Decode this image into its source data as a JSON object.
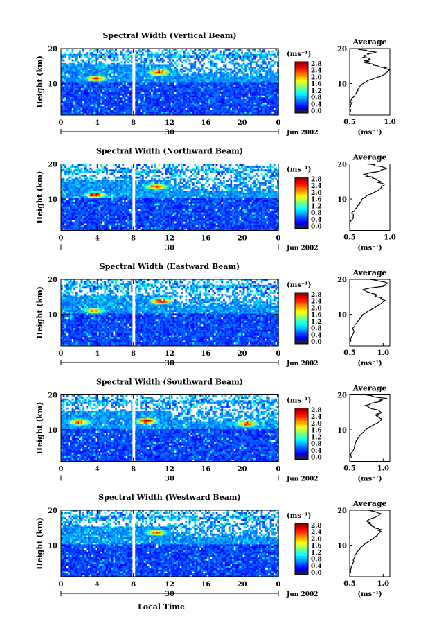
{
  "figure": {
    "xlabel": "Local Time",
    "ylabel": "Height (km)",
    "date_label": "Jun 2002",
    "day_label": "30",
    "unit_label": "(ms⁻¹)",
    "avg_title": "Average",
    "avg_xlabel": "(ms⁻¹)"
  },
  "chart_data": [
    {
      "type": "heatmap",
      "title": "Spectral Width (Vertical Beam)",
      "x_ticks": [
        "0",
        "4",
        "8",
        "12",
        "16",
        "20",
        "0"
      ],
      "xlim": [
        0,
        24
      ],
      "y_ticks": [
        "10",
        "20"
      ],
      "ylim": [
        1,
        20
      ],
      "colorbar": {
        "label": "(ms⁻¹)",
        "ticks": [
          "2.8",
          "2.4",
          "2.0",
          "1.6",
          "1.2",
          "0.8",
          "0.4",
          "0.0"
        ],
        "range": [
          0,
          3.0
        ]
      },
      "gap_hours": [
        7.9,
        8.2
      ],
      "hotspots": [
        {
          "t": 3.9,
          "h": 11.5,
          "v": 2.4
        },
        {
          "t": 10.8,
          "h": 13.2,
          "v": 2.7
        }
      ],
      "average_profile": {
        "xlim": [
          0.5,
          1.0
        ],
        "x_ticks": [
          "0.5",
          "1.0"
        ],
        "y_ticks": [
          "10",
          "20"
        ],
        "height": [
          2,
          3,
          4,
          5,
          6,
          7,
          8,
          9,
          10,
          11,
          12,
          13,
          14,
          15,
          16,
          17,
          18,
          19,
          20
        ],
        "value": [
          0.52,
          0.5,
          0.52,
          0.51,
          0.54,
          0.57,
          0.6,
          0.62,
          0.66,
          0.74,
          0.88,
          0.96,
          0.99,
          0.86,
          0.71,
          0.73,
          0.67,
          0.8,
          0.6
        ]
      }
    },
    {
      "type": "heatmap",
      "title": "Spectral Width (Northward Beam)",
      "x_ticks": [
        "0",
        "4",
        "8",
        "12",
        "16",
        "20",
        "0"
      ],
      "xlim": [
        0,
        24
      ],
      "y_ticks": [
        "10",
        "20"
      ],
      "ylim": [
        1,
        20
      ],
      "colorbar": {
        "label": "(ms⁻¹)",
        "ticks": [
          "2.8",
          "2.4",
          "2.0",
          "1.6",
          "1.2",
          "0.8",
          "0.4",
          "0.0"
        ],
        "range": [
          0,
          3.0
        ]
      },
      "gap_hours": [
        7.9,
        8.2
      ],
      "hotspots": [
        {
          "t": 3.8,
          "h": 11.2,
          "v": 2.8
        },
        {
          "t": 10.5,
          "h": 13.5,
          "v": 2.6
        }
      ],
      "average_profile": {
        "xlim": [
          0.5,
          1.0
        ],
        "x_ticks": [
          "0.5",
          "1.0"
        ],
        "y_ticks": [
          "10",
          "20"
        ],
        "height": [
          2,
          3,
          4,
          5,
          6,
          7,
          8,
          9,
          10,
          11,
          12,
          13,
          14,
          15,
          16,
          17,
          18,
          19,
          20
        ],
        "value": [
          0.5,
          0.49,
          0.53,
          0.55,
          0.53,
          0.57,
          0.6,
          0.64,
          0.66,
          0.72,
          0.82,
          0.88,
          0.93,
          0.85,
          0.8,
          0.66,
          0.9,
          0.95,
          0.72
        ]
      }
    },
    {
      "type": "heatmap",
      "title": "Spectral Width (Eastward Beam)",
      "x_ticks": [
        "0",
        "4",
        "8",
        "12",
        "16",
        "20",
        "0"
      ],
      "xlim": [
        0,
        24
      ],
      "y_ticks": [
        "10",
        "20"
      ],
      "ylim": [
        1,
        20
      ],
      "colorbar": {
        "label": "(ms⁻¹)",
        "ticks": [
          "2.8",
          "2.4",
          "2.0",
          "1.6",
          "1.2",
          "0.8",
          "0.4",
          "0.0"
        ],
        "range": [
          0,
          3.0
        ]
      },
      "gap_hours": [
        7.9,
        8.2
      ],
      "hotspots": [
        {
          "t": 3.7,
          "h": 11.0,
          "v": 2.2
        },
        {
          "t": 11.0,
          "h": 13.8,
          "v": 2.8
        }
      ],
      "average_profile": {
        "xlim": [
          0.5,
          1.1
        ],
        "x_ticks": [
          "0.5",
          "1.0"
        ],
        "y_ticks": [
          "10",
          "20"
        ],
        "height": [
          2,
          3,
          4,
          5,
          6,
          7,
          8,
          9,
          10,
          11,
          12,
          13,
          14,
          15,
          16,
          17,
          18,
          19,
          20
        ],
        "value": [
          0.52,
          0.51,
          0.54,
          0.56,
          0.55,
          0.58,
          0.62,
          0.66,
          0.7,
          0.78,
          0.88,
          0.96,
          1.02,
          0.92,
          0.84,
          0.68,
          0.98,
          1.05,
          0.8
        ]
      }
    },
    {
      "type": "heatmap",
      "title": "Spectral Width (Southward Beam)",
      "x_ticks": [
        "0",
        "4",
        "8",
        "12",
        "16",
        "20",
        "0"
      ],
      "xlim": [
        0,
        24
      ],
      "y_ticks": [
        "10",
        "20"
      ],
      "ylim": [
        1,
        20
      ],
      "colorbar": {
        "label": "(ms⁻¹)",
        "ticks": [
          "2.8",
          "2.4",
          "2.0",
          "1.6",
          "1.2",
          "0.8",
          "0.4",
          "0.0"
        ],
        "range": [
          0,
          3.0
        ]
      },
      "gap_hours": [
        7.9,
        8.2
      ],
      "hotspots": [
        {
          "t": 2.0,
          "h": 12.2,
          "v": 2.4
        },
        {
          "t": 9.5,
          "h": 12.5,
          "v": 2.7
        },
        {
          "t": 20.5,
          "h": 11.8,
          "v": 2.5
        }
      ],
      "average_profile": {
        "xlim": [
          0.5,
          1.1
        ],
        "x_ticks": [
          "0.5",
          "1.0"
        ],
        "y_ticks": [
          "10",
          "20"
        ],
        "height": [
          2,
          3,
          4,
          5,
          6,
          7,
          8,
          9,
          10,
          11,
          12,
          13,
          14,
          15,
          16,
          17,
          18,
          19,
          20
        ],
        "value": [
          0.53,
          0.52,
          0.55,
          0.57,
          0.58,
          0.6,
          0.64,
          0.68,
          0.74,
          0.82,
          0.92,
          0.98,
          0.9,
          0.96,
          0.84,
          0.72,
          0.94,
          1.02,
          0.74
        ]
      }
    },
    {
      "type": "heatmap",
      "title": "Spectral Width (Westward Beam)",
      "x_ticks": [
        "0",
        "4",
        "8",
        "12",
        "16",
        "20",
        "0"
      ],
      "xlim": [
        0,
        24
      ],
      "y_ticks": [
        "10",
        "20"
      ],
      "ylim": [
        1,
        20
      ],
      "colorbar": {
        "label": "(ms⁻¹)",
        "ticks": [
          "2.8",
          "2.4",
          "2.0",
          "1.6",
          "1.2",
          "0.8",
          "0.4",
          "0.0"
        ],
        "range": [
          0,
          3.0
        ]
      },
      "gap_hours": [
        7.9,
        8.2
      ],
      "hotspots": [
        {
          "t": 10.5,
          "h": 13.6,
          "v": 2.4
        }
      ],
      "average_profile": {
        "xlim": [
          0.5,
          1.1
        ],
        "x_ticks": [
          "0.5",
          "1.0"
        ],
        "y_ticks": [
          "10",
          "20"
        ],
        "height": [
          2,
          3,
          4,
          5,
          6,
          7,
          8,
          9,
          10,
          11,
          12,
          13,
          14,
          15,
          16,
          17,
          18,
          19,
          20
        ],
        "value": [
          0.52,
          0.51,
          0.53,
          0.55,
          0.56,
          0.58,
          0.61,
          0.65,
          0.7,
          0.78,
          0.86,
          0.92,
          0.96,
          0.9,
          0.82,
          0.74,
          0.92,
          0.98,
          0.78
        ]
      }
    }
  ]
}
